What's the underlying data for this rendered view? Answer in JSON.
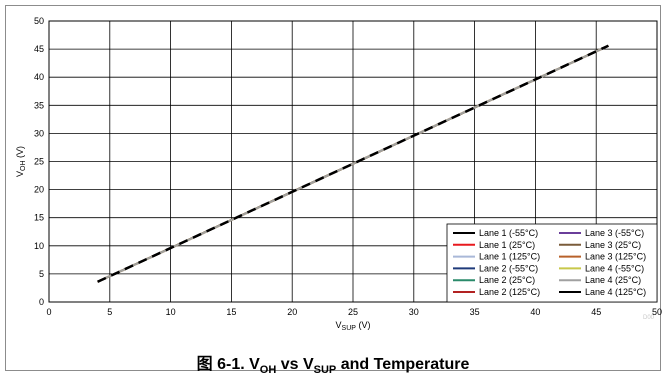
{
  "chart_data": {
    "type": "line",
    "title": "",
    "xlabel": {
      "main": "V",
      "sub": "SUP",
      "unit": " (V)"
    },
    "ylabel": {
      "main": "V",
      "sub": "OH",
      "unit": " (V)"
    },
    "xlim": [
      0,
      50
    ],
    "ylim": [
      0,
      50
    ],
    "xticks": [
      "0",
      "5",
      "10",
      "15",
      "20",
      "25",
      "30",
      "35",
      "40",
      "45",
      "50"
    ],
    "yticks": [
      "0",
      "5",
      "10",
      "15",
      "20",
      "25",
      "30",
      "35",
      "40",
      "45",
      "50"
    ],
    "grid": true,
    "legend_position": "bottom-right",
    "series": [
      {
        "name": "Lane 1 (-55°C)",
        "color": "#000000",
        "x": [
          4,
          46
        ],
        "y": [
          3.6,
          45.6
        ]
      },
      {
        "name": "Lane 1 (25°C)",
        "color": "#e8191e",
        "x": [
          4,
          46
        ],
        "y": [
          3.6,
          45.6
        ]
      },
      {
        "name": "Lane 1 (125°C)",
        "color": "#a9b8d8",
        "x": [
          4,
          46
        ],
        "y": [
          3.6,
          45.6
        ]
      },
      {
        "name": "Lane 2 (-55°C)",
        "color": "#1f3a7a",
        "x": [
          4,
          46
        ],
        "y": [
          3.6,
          45.6
        ]
      },
      {
        "name": "Lane 2 (25°C)",
        "color": "#2a8a6a",
        "x": [
          4,
          46
        ],
        "y": [
          3.6,
          45.6
        ]
      },
      {
        "name": "Lane 2 (125°C)",
        "color": "#b22222",
        "x": [
          4,
          46
        ],
        "y": [
          3.6,
          45.6
        ]
      },
      {
        "name": "Lane 3 (-55°C)",
        "color": "#6a3d9a",
        "x": [
          4,
          46
        ],
        "y": [
          3.6,
          45.6
        ]
      },
      {
        "name": "Lane 3 (25°C)",
        "color": "#7a5c3a",
        "x": [
          4,
          46
        ],
        "y": [
          3.6,
          45.6
        ]
      },
      {
        "name": "Lane 3 (125°C)",
        "color": "#b8612a",
        "x": [
          4,
          46
        ],
        "y": [
          3.6,
          45.6
        ]
      },
      {
        "name": "Lane 4 (-55°C)",
        "color": "#c8c84a",
        "x": [
          4,
          46
        ],
        "y": [
          3.6,
          45.6
        ]
      },
      {
        "name": "Lane 4 (25°C)",
        "color": "#a0a0a0",
        "x": [
          4,
          46
        ],
        "y": [
          3.6,
          45.6
        ]
      },
      {
        "name": "Lane 4 (125°C)",
        "color": "#000000",
        "x": [
          4,
          46
        ],
        "y": [
          3.6,
          45.6
        ]
      }
    ]
  },
  "watermark": "D00",
  "caption": {
    "prefix": "图 6-1. V",
    "sub1": "OH",
    "mid": " vs V",
    "sub2": "SUP",
    "suffix": " and Temperature"
  }
}
